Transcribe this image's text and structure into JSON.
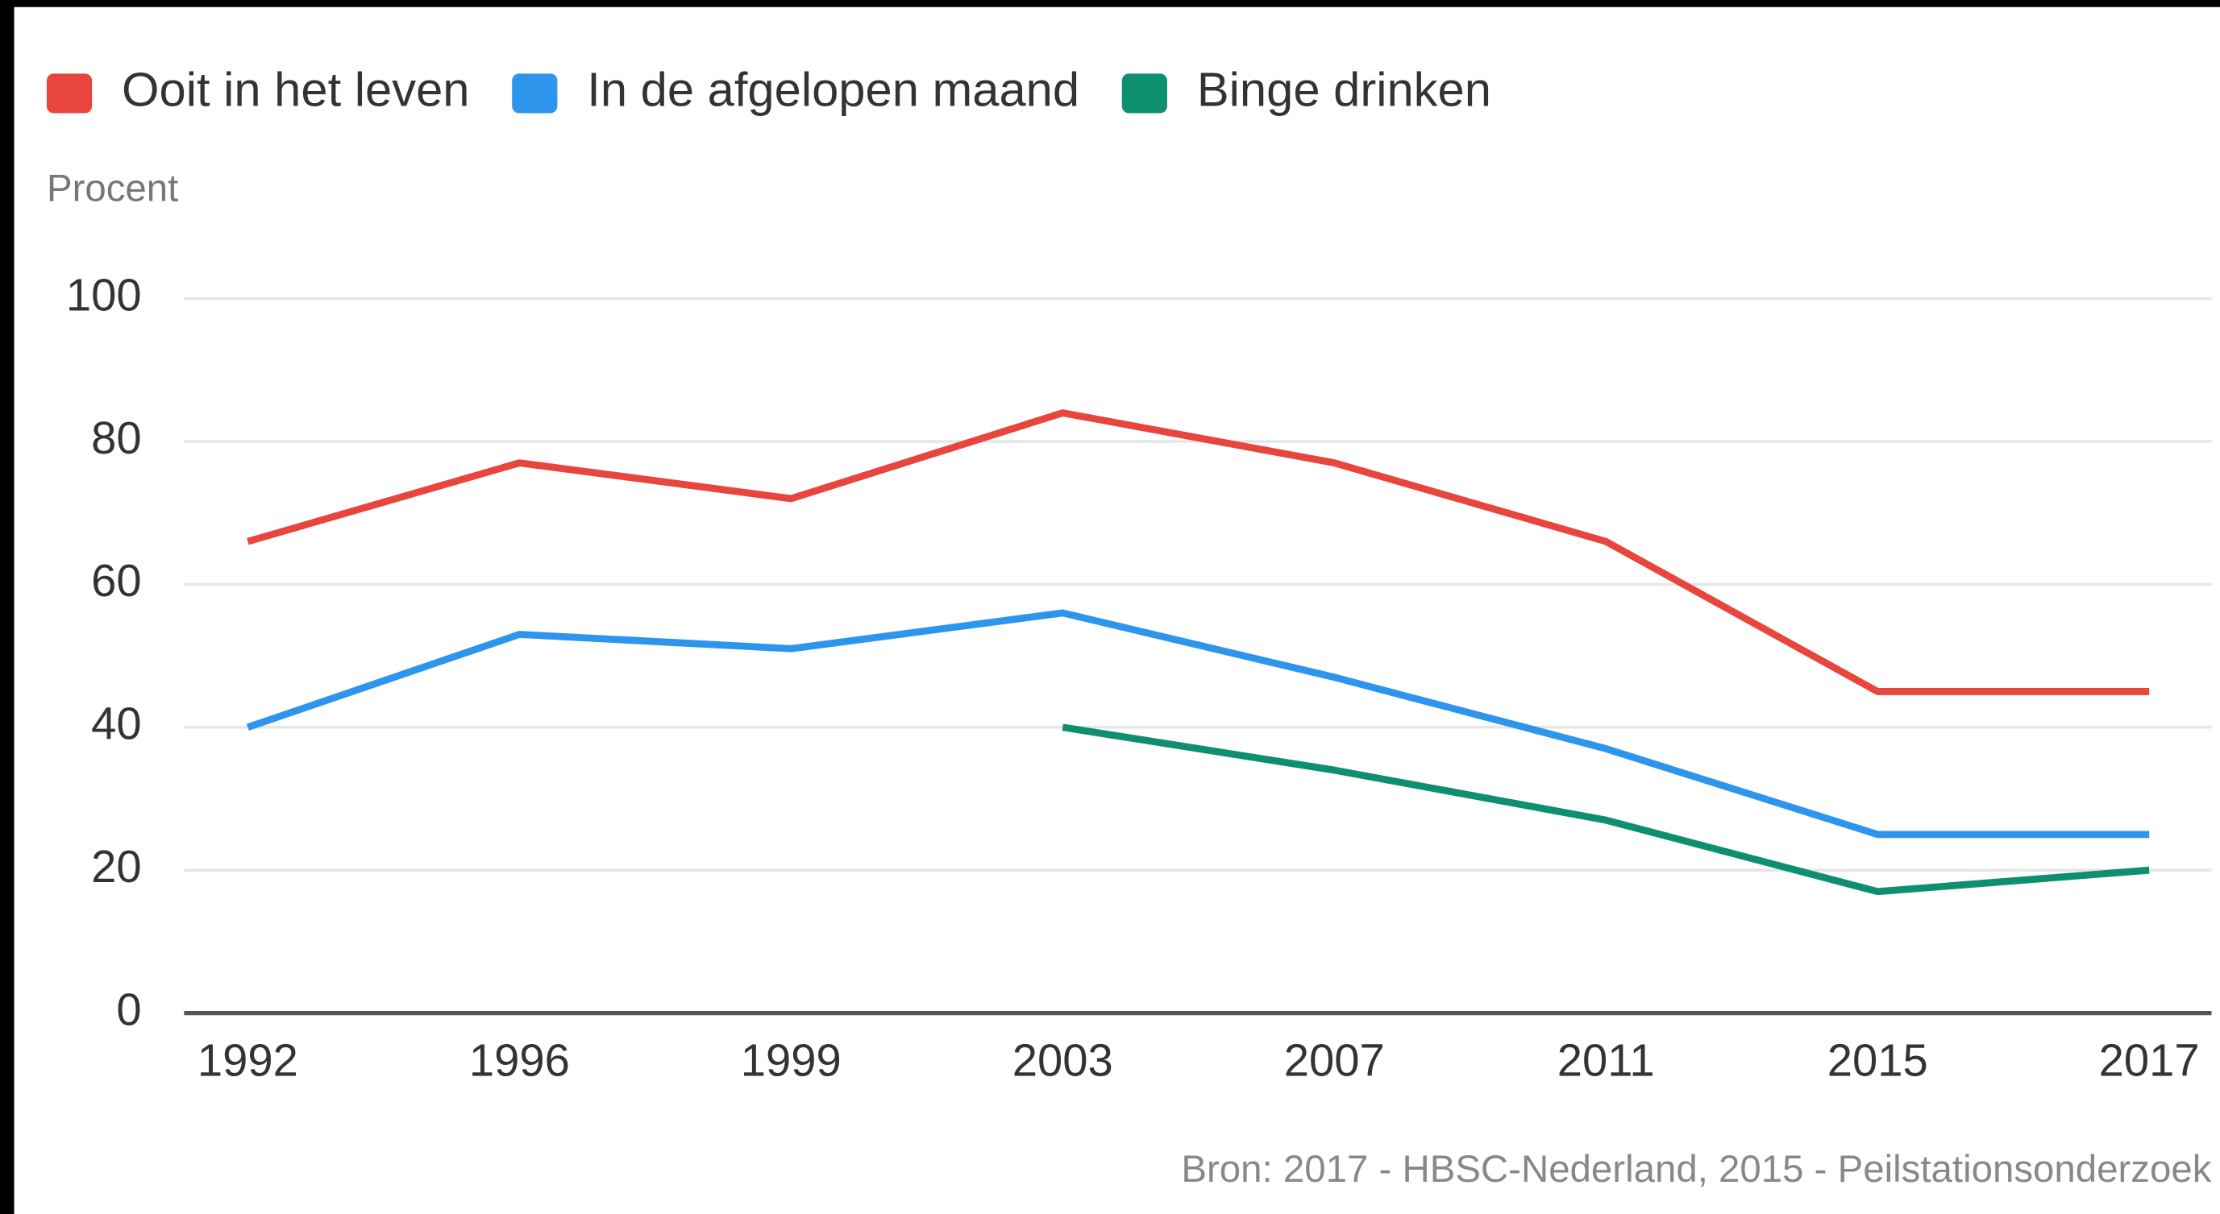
{
  "chart_data": {
    "type": "line",
    "y_label": "Procent",
    "source": "Bron:  2017 - HBSC-Nederland, 2015 - Peilstationsonderzoek",
    "categories": [
      "1992",
      "1996",
      "1999",
      "2003",
      "2007",
      "2011",
      "2015",
      "2017"
    ],
    "series": [
      {
        "name": "Ooit in het leven",
        "color": "#e8453c",
        "values": [
          66,
          77,
          72,
          84,
          77,
          66,
          45,
          45
        ]
      },
      {
        "name": "In de afgelopen maand",
        "color": "#2d95ec",
        "values": [
          40,
          53,
          51,
          56,
          47,
          37,
          25,
          25
        ]
      },
      {
        "name": "Binge drinken",
        "color": "#0e8f6f",
        "values": [
          null,
          null,
          null,
          40,
          34,
          27,
          17,
          20
        ]
      }
    ],
    "ylim": [
      0,
      100
    ],
    "yticks": [
      0,
      20,
      40,
      60,
      80,
      100
    ],
    "grid": true,
    "legend": "top"
  }
}
